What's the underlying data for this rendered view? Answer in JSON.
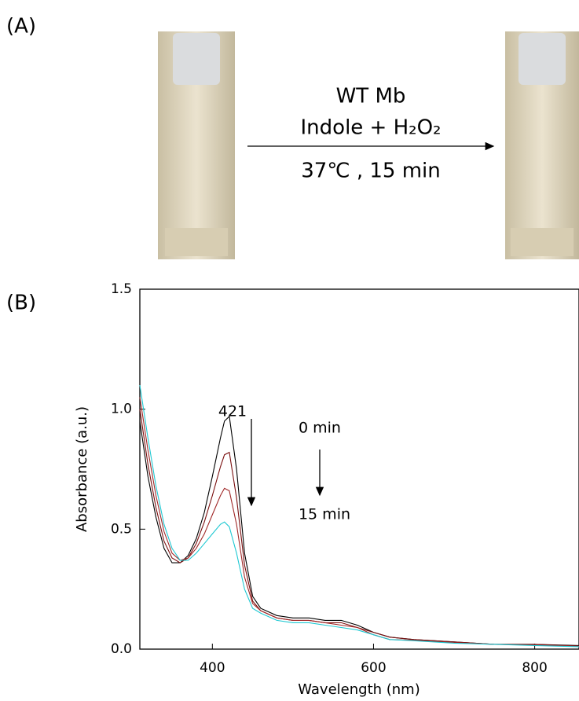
{
  "panel_a": {
    "label": "(A)",
    "lines": [
      "WT Mb",
      "Indole + H₂O₂",
      "37℃ , 15 min"
    ]
  },
  "chart_data": {
    "type": "line",
    "label": "(B)",
    "xlabel": "Wavelength (nm)",
    "ylabel": "Absorbance (a.u.)",
    "xlim": [
      310,
      855
    ],
    "ylim": [
      0,
      1.5
    ],
    "xticks": [
      400,
      600,
      800
    ],
    "yticks": [
      {
        "value": 0,
        "label": "0.0"
      },
      0.5,
      {
        "value": 1,
        "label": "1.0"
      },
      1.5
    ],
    "annotations": [
      "421",
      "0 min",
      "15 min"
    ],
    "x": [
      310,
      320,
      330,
      340,
      350,
      360,
      370,
      380,
      390,
      400,
      410,
      415,
      421,
      430,
      440,
      450,
      460,
      480,
      500,
      520,
      540,
      560,
      580,
      600,
      620,
      650,
      700,
      750,
      800,
      855
    ],
    "series": [
      {
        "color": "#000000",
        "values": [
          0.95,
          0.72,
          0.55,
          0.42,
          0.36,
          0.36,
          0.39,
          0.46,
          0.57,
          0.72,
          0.88,
          0.95,
          0.97,
          0.75,
          0.4,
          0.22,
          0.17,
          0.14,
          0.13,
          0.13,
          0.12,
          0.12,
          0.1,
          0.07,
          0.05,
          0.04,
          0.03,
          0.02,
          0.02,
          0.015
        ]
      },
      {
        "color": "#7a1010",
        "values": [
          1.0,
          0.77,
          0.59,
          0.45,
          0.38,
          0.36,
          0.38,
          0.44,
          0.53,
          0.64,
          0.76,
          0.81,
          0.82,
          0.63,
          0.35,
          0.2,
          0.16,
          0.13,
          0.12,
          0.12,
          0.11,
          0.11,
          0.09,
          0.07,
          0.05,
          0.04,
          0.03,
          0.02,
          0.02,
          0.013
        ]
      },
      {
        "color": "#a02828",
        "values": [
          1.05,
          0.83,
          0.64,
          0.49,
          0.4,
          0.37,
          0.38,
          0.42,
          0.48,
          0.56,
          0.64,
          0.67,
          0.66,
          0.52,
          0.3,
          0.19,
          0.16,
          0.13,
          0.12,
          0.12,
          0.11,
          0.1,
          0.09,
          0.06,
          0.04,
          0.037,
          0.027,
          0.02,
          0.017,
          0.012
        ]
      },
      {
        "color": "#1ec8d2",
        "values": [
          1.1,
          0.88,
          0.68,
          0.52,
          0.42,
          0.37,
          0.37,
          0.4,
          0.44,
          0.48,
          0.52,
          0.53,
          0.51,
          0.4,
          0.25,
          0.17,
          0.15,
          0.12,
          0.11,
          0.11,
          0.1,
          0.09,
          0.08,
          0.06,
          0.04,
          0.035,
          0.025,
          0.02,
          0.015,
          0.01
        ]
      }
    ]
  }
}
